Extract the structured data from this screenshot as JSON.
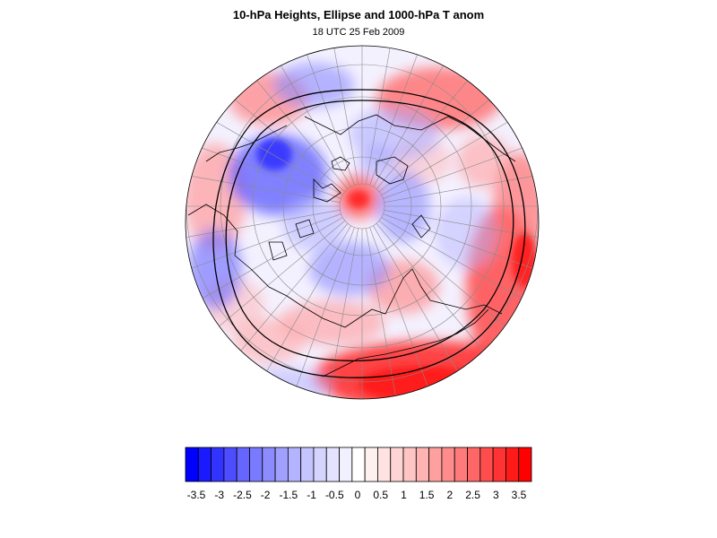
{
  "header": {
    "title": "10-hPa Heights, Ellipse and 1000-hPa T anom",
    "subtitle": "18 UTC 25 Feb 2009"
  },
  "map": {
    "projection": "north-polar-stereographic",
    "background_color": "#f4f1ff",
    "grid": true,
    "coastlines": true,
    "ellipse_contour_color": "#000000"
  },
  "colorbar": {
    "levels": [
      -3.75,
      -3.5,
      -3.25,
      -3,
      -2.75,
      -2.5,
      -2.25,
      -2,
      -1.75,
      -1.5,
      -1.25,
      -1,
      -0.75,
      -0.5,
      -0.25,
      0,
      0.25,
      0.5,
      0.75,
      1,
      1.25,
      1.5,
      1.75,
      2,
      2.25,
      2.5,
      2.75,
      3,
      3.25,
      3.5,
      3.75
    ],
    "tick_labels": [
      "-3.5",
      "-3",
      "-2.5",
      "-2",
      "-1.5",
      "-1",
      "-0.5",
      "0",
      "0.5",
      "1",
      "1.5",
      "2",
      "2.5",
      "3",
      "3.5"
    ],
    "colors": [
      "#0000ff",
      "#1a1aff",
      "#3333ff",
      "#4d4dff",
      "#6666ff",
      "#7a7aff",
      "#8c8cff",
      "#a0a0ff",
      "#b3b3ff",
      "#c4c4ff",
      "#d4d4ff",
      "#e3e3ff",
      "#f0f0ff",
      "#ffffff",
      "#fff0f0",
      "#ffe3e3",
      "#ffd4d4",
      "#ffc4c4",
      "#ffb3b3",
      "#ffa0a0",
      "#ff8c8c",
      "#ff7a7a",
      "#ff6666",
      "#ff4d4d",
      "#ff3333",
      "#ff1a1a",
      "#ff0000"
    ]
  }
}
